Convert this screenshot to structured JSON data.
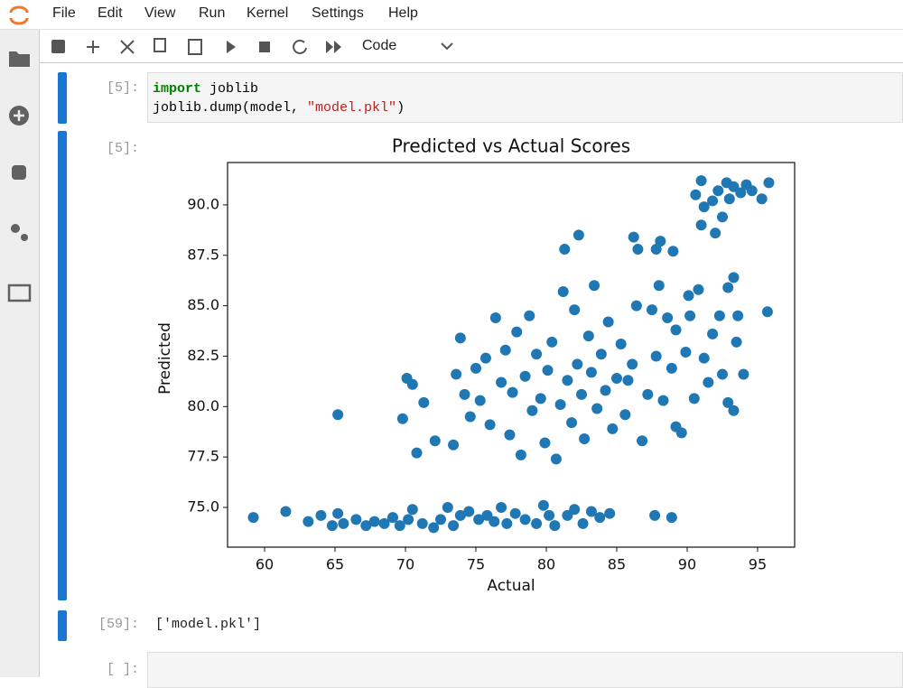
{
  "menu": [
    "File",
    "Edit",
    "View",
    "Run",
    "Kernel",
    "Settings",
    "Help"
  ],
  "toolbar": {
    "cell_type": "Code"
  },
  "cells": [
    {
      "prompt": "[5]:",
      "code": [
        {
          "keyword": "import",
          "text": "joblib"
        },
        {
          "text": "joblib.dump(model, ",
          "string": "\"model.pkl\"",
          "end": ")"
        }
      ]
    },
    {
      "prompt": "[5]:"
    },
    {
      "prompt": "[59]:",
      "output": "['model.pkl']"
    },
    {
      "prompt": "[ ]:"
    }
  ],
  "chart_data": {
    "type": "scatter",
    "title": "Predicted vs Actual Scores",
    "x_label": "Actual",
    "y_label": "Predicted",
    "color": "#1f77b4",
    "x": [
      59.2,
      61.5,
      63.1,
      64,
      64.8,
      65.2,
      65.6,
      66.5,
      67.2,
      67.8,
      68.5,
      69.1,
      69.6,
      70.2,
      70.5,
      71.2,
      72,
      72.5,
      73,
      73.4,
      73.9,
      74.5,
      75.2,
      75.8,
      76.3,
      76.8,
      77.2,
      77.8,
      78.5,
      79.3,
      79.8,
      80.2,
      80.6,
      81.5,
      82,
      82.6,
      83.2,
      83.8,
      84.5,
      87.7,
      88.9,
      70.1,
      70.5,
      69.8,
      70.8,
      71.3,
      72.1,
      73.4,
      73.6,
      73.9,
      74.2,
      74.6,
      75,
      75.3,
      75.7,
      76,
      76.4,
      76.8,
      77.1,
      77.4,
      77.6,
      77.9,
      78.2,
      78.5,
      78.8,
      79,
      79.3,
      79.6,
      79.9,
      80.1,
      80.4,
      80.7,
      81,
      81.2,
      81.5,
      81.8,
      82,
      82.2,
      82.5,
      82.7,
      83,
      83.2,
      83.4,
      83.6,
      83.9,
      84.2,
      84.4,
      84.7,
      85,
      85.3,
      85.6,
      85.8,
      86.1,
      86.4,
      86.8,
      87.2,
      87.5,
      87.8,
      88,
      88.3,
      88.6,
      88.9,
      89.2,
      89.2,
      89.6,
      89.9,
      90.2,
      90.5,
      90.8,
      91.2,
      91.8,
      92.3,
      92.5,
      92.9,
      93.3,
      93.5,
      93.6,
      94,
      92.9,
      91.5,
      90.1,
      90.6,
      91,
      91.2,
      91,
      91.8,
      92.2,
      92.5,
      92.8,
      93,
      93.3,
      93.8,
      94.2,
      94.6,
      95.3,
      95.8,
      92,
      65.2,
      81.3,
      82.3,
      86.2,
      86.5,
      87.8,
      88.1,
      89,
      95.7,
      93.3
    ],
    "values": [
      74.5,
      74.8,
      74.3,
      74.6,
      74.1,
      74.7,
      74.2,
      74.4,
      74.1,
      74.3,
      74.2,
      74.5,
      74.1,
      74.4,
      74.9,
      74.2,
      74,
      74.4,
      75,
      74.1,
      74.6,
      74.8,
      74.4,
      74.6,
      74.3,
      75,
      74.2,
      74.7,
      74.4,
      74.2,
      75.1,
      74.6,
      74.1,
      74.6,
      74.9,
      74.2,
      74.8,
      74.5,
      74.7,
      74.6,
      74.5,
      81.4,
      81.1,
      79.4,
      77.7,
      80.2,
      78.3,
      78.1,
      81.6,
      83.4,
      80.6,
      79.5,
      81.9,
      80.3,
      82.4,
      79.1,
      84.4,
      81.2,
      82.8,
      78.6,
      80.7,
      83.7,
      77.6,
      81.5,
      84.5,
      79.8,
      82.6,
      80.4,
      78.2,
      81.8,
      83.2,
      77.4,
      80.1,
      85.7,
      81.3,
      79.2,
      84.8,
      82.1,
      80.6,
      78.4,
      83.5,
      81.7,
      86,
      79.9,
      82.6,
      80.8,
      84.2,
      78.9,
      81.4,
      83.1,
      79.6,
      81.3,
      82.1,
      85,
      78.3,
      80.6,
      84.8,
      82.5,
      86,
      80.3,
      84.4,
      81.9,
      83.8,
      79,
      78.7,
      82.7,
      84.5,
      80.4,
      85.8,
      82.4,
      83.6,
      84.5,
      81.6,
      80.2,
      79.8,
      83.2,
      84.5,
      81.6,
      85.9,
      81.2,
      85.5,
      90.5,
      91.2,
      89.9,
      89,
      90.2,
      90.7,
      89.4,
      91.1,
      90.3,
      90.9,
      90.6,
      91,
      90.7,
      90.3,
      91.1,
      88.6,
      79.6,
      87.8,
      88.5,
      88.4,
      87.8,
      87.8,
      88.2,
      87.7,
      84.7,
      86.4
    ],
    "xlim": [
      57.37,
      97.63
    ],
    "ylim": [
      73.03,
      92.1
    ],
    "xticks": [
      60,
      65,
      70,
      75,
      80,
      85,
      90,
      95
    ],
    "yticks": [
      {
        "value": 75,
        "label": "75.0"
      },
      {
        "value": 77.5,
        "label": "77.5"
      },
      {
        "value": 80,
        "label": "80.0"
      },
      {
        "value": 82.5,
        "label": "82.5"
      },
      {
        "value": 85,
        "label": "85.0"
      },
      {
        "value": 87.5,
        "label": "87.5"
      },
      {
        "value": 90,
        "label": "90.0"
      }
    ]
  }
}
